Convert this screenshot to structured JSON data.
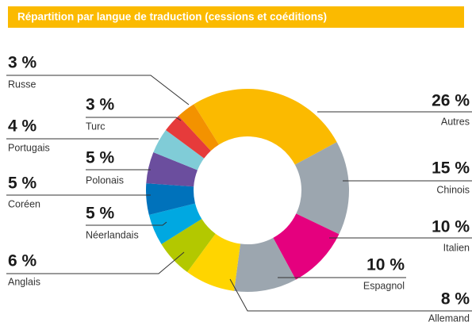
{
  "chart_data": {
    "type": "donut",
    "title": "Répartition par langue de traduction (cessions et coéditions)",
    "categories": [
      "Autres",
      "Chinois",
      "Italien",
      "Espagnol",
      "Allemand",
      "Anglais",
      "Néerlandais",
      "Coréen",
      "Polonais",
      "Portugais",
      "Turc",
      "Russe"
    ],
    "values": [
      26,
      15,
      10,
      10,
      8,
      6,
      5,
      5,
      5,
      4,
      3,
      3
    ],
    "value_labels": [
      "26 %",
      "15 %",
      "10 %",
      "10 %",
      "8 %",
      "6 %",
      "5 %",
      "5 %",
      "5 %",
      "4 %",
      "3 %",
      "3 %"
    ],
    "colors": [
      "#FBBA00",
      "#9CA6AF",
      "#E5007E",
      "#9CA6AF",
      "#FFD500",
      "#B3C800",
      "#00A8E1",
      "#0072BB",
      "#6B4E9E",
      "#80CCD7",
      "#E63B3B",
      "#F39200"
    ]
  }
}
